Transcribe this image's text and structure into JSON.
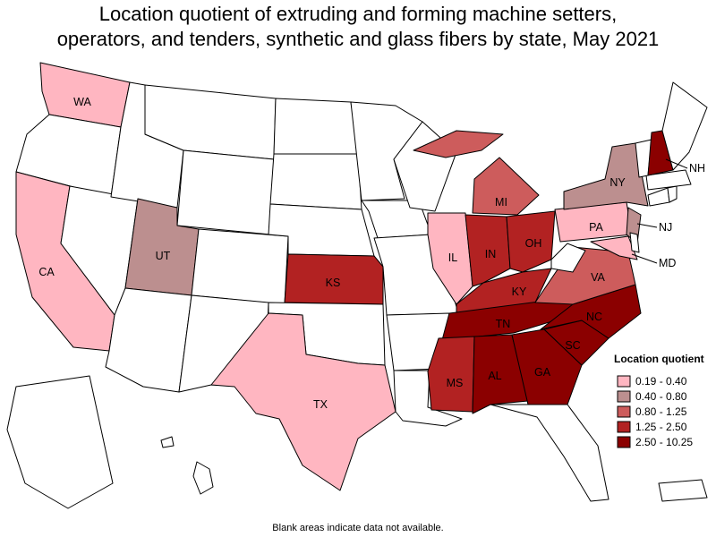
{
  "title": {
    "line1": "Location quotient of extruding and forming machine setters,",
    "line2": "operators, and tenders, synthetic and glass fibers by state, May 2021"
  },
  "legend": {
    "title": "Location quotient",
    "bins": [
      {
        "label": "0.19 - 0.40",
        "color": "#ffb6c1"
      },
      {
        "label": "0.40 - 0.80",
        "color": "#bc8f8f"
      },
      {
        "label": "0.80 - 1.25",
        "color": "#cd5c5c"
      },
      {
        "label": "1.25 - 2.50",
        "color": "#b22222"
      },
      {
        "label": "2.50 - 10.25",
        "color": "#8b0000"
      }
    ]
  },
  "colors": {
    "no_data": "#ffffff",
    "border": "#000000"
  },
  "states": {
    "WA": {
      "bin": 0
    },
    "CA": {
      "bin": 0
    },
    "IL": {
      "bin": 0
    },
    "PA": {
      "bin": 0
    },
    "TX": {
      "bin": 0
    },
    "MD": {
      "bin": 0
    },
    "UT": {
      "bin": 1
    },
    "NY": {
      "bin": 1
    },
    "NJ": {
      "bin": 1
    },
    "MI": {
      "bin": 2
    },
    "VA": {
      "bin": 2
    },
    "KS": {
      "bin": 3
    },
    "IN": {
      "bin": 3
    },
    "OH": {
      "bin": 3
    },
    "KY": {
      "bin": 3
    },
    "MS": {
      "bin": 3
    },
    "NH": {
      "bin": 4
    },
    "TN": {
      "bin": 4
    },
    "NC": {
      "bin": 4
    },
    "SC": {
      "bin": 4
    },
    "GA": {
      "bin": 4
    },
    "AL": {
      "bin": 4
    }
  },
  "footnote": "Blank areas indicate data not available."
}
